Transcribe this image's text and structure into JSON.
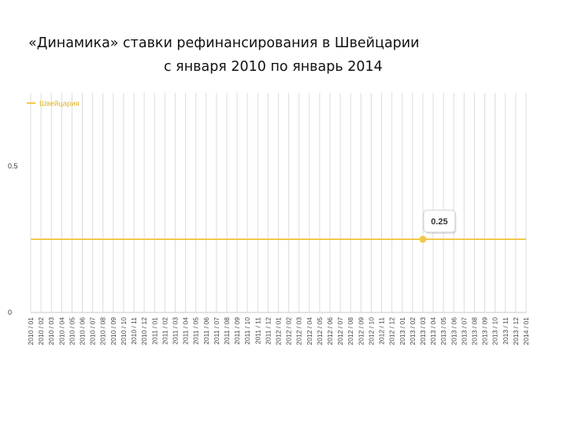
{
  "title_line1": "«Динамика» ставки рефинансирования в Швейцарии",
  "title_line2": "с января 2010 по январь 2014",
  "chart_data": {
    "type": "line",
    "title": "«Динамика» ставки рефинансирования в Швейцарии с января 2010 по январь 2014",
    "xlabel": "",
    "ylabel": "",
    "ylim": [
      0,
      0.75
    ],
    "yticks": [
      "0",
      "0.5"
    ],
    "grid": true,
    "legend_placement": "top-left",
    "line_color": "#f2c94c",
    "x": [
      "2010 / 01",
      "2010 / 02",
      "2010 / 03",
      "2010 / 04",
      "2010 / 05",
      "2010 / 06",
      "2010 / 07",
      "2010 / 08",
      "2010 / 09",
      "2010 / 10",
      "2010 / 11",
      "2010 / 12",
      "2011 / 01",
      "2011 / 02",
      "2011 / 03",
      "2011 / 04",
      "2011 / 05",
      "2011 / 06",
      "2011 / 07",
      "2011 / 08",
      "2011 / 09",
      "2011 / 10",
      "2011 / 11",
      "2011 / 12",
      "2012 / 01",
      "2012 / 02",
      "2012 / 03",
      "2012 / 04",
      "2012 / 05",
      "2012 / 06",
      "2012 / 07",
      "2012 / 08",
      "2012 / 09",
      "2012 / 10",
      "2012 / 11",
      "2012 / 12",
      "2013 / 01",
      "2013 / 02",
      "2013 / 03",
      "2013 / 04",
      "2013 / 05",
      "2013 / 06",
      "2013 / 07",
      "2013 / 08",
      "2013 / 09",
      "2013 / 10",
      "2013 / 11",
      "2013 / 12",
      "2014 / 01"
    ],
    "series": [
      {
        "name": "Швейцария",
        "values": [
          0.25,
          0.25,
          0.25,
          0.25,
          0.25,
          0.25,
          0.25,
          0.25,
          0.25,
          0.25,
          0.25,
          0.25,
          0.25,
          0.25,
          0.25,
          0.25,
          0.25,
          0.25,
          0.25,
          0.25,
          0.25,
          0.25,
          0.25,
          0.25,
          0.25,
          0.25,
          0.25,
          0.25,
          0.25,
          0.25,
          0.25,
          0.25,
          0.25,
          0.25,
          0.25,
          0.25,
          0.25,
          0.25,
          0.25,
          0.25,
          0.25,
          0.25,
          0.25,
          0.25,
          0.25,
          0.25,
          0.25,
          0.25,
          0.25
        ]
      }
    ],
    "highlight": {
      "x": "2013 / 03",
      "label": "0.25"
    }
  }
}
